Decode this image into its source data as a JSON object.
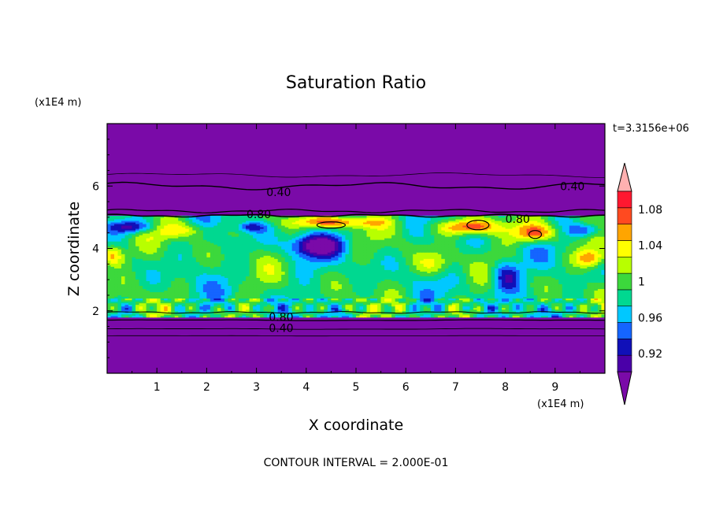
{
  "chart_data": {
    "type": "heatmap",
    "title": "Saturation Ratio",
    "xlabel": "X coordinate",
    "ylabel": "Z coordinate",
    "x_unit": "(x1E4 m)",
    "y_unit": "(x1E4 m)",
    "time_label": "t=3.3156e+06",
    "footer": "CONTOUR INTERVAL = 2.000E-01",
    "xlim": [
      0,
      10
    ],
    "ylim": [
      0,
      8
    ],
    "x_ticks": [
      "1",
      "2",
      "3",
      "4",
      "5",
      "6",
      "7",
      "8",
      "9"
    ],
    "y_ticks": [
      "2",
      "4",
      "6"
    ],
    "colorbar": {
      "levels": [
        0.9,
        0.92,
        0.94,
        0.96,
        0.98,
        1.0,
        1.02,
        1.04,
        1.06,
        1.08,
        1.1
      ],
      "tick_labels": [
        "0.92",
        "0.96",
        "1",
        "1.04",
        "1.08"
      ],
      "colors": [
        "#7a0aa8",
        "#4a00a8",
        "#1010b8",
        "#1565ff",
        "#00c8ff",
        "#00d890",
        "#3cd83c",
        "#b8ff00",
        "#ffff00",
        "#ffa500",
        "#ff4a20",
        "#ff1830",
        "#ffb0b0"
      ]
    },
    "contour_labels": [
      {
        "text": "0.40",
        "x": 3.2,
        "z": 5.8
      },
      {
        "text": "0.40",
        "x": 9.1,
        "z": 6.0
      },
      {
        "text": "0.80",
        "x": 2.8,
        "z": 5.1
      },
      {
        "text": "0.80",
        "x": 8.0,
        "z": 4.95
      },
      {
        "text": "0.80",
        "x": 3.25,
        "z": 1.8
      },
      {
        "text": "0.40",
        "x": 3.25,
        "z": 1.45
      }
    ]
  }
}
